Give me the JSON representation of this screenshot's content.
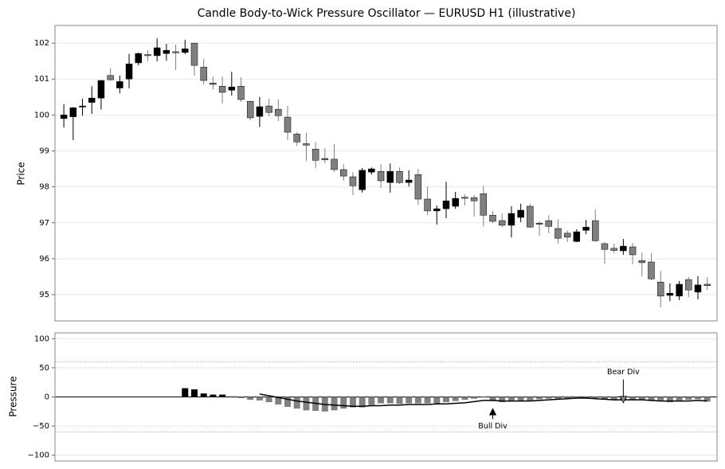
{
  "chart_data": [
    {
      "type": "candlestick",
      "title": "Candle Body-to-Wick Pressure Oscillator — EURUSD H1 (illustrative)",
      "y_label": "Price",
      "x": [
        0,
        1,
        2,
        3,
        4,
        5,
        6,
        7,
        8,
        9,
        10,
        11,
        12,
        13,
        14,
        15,
        16,
        17,
        18,
        19,
        20,
        21,
        22,
        23,
        24,
        25,
        26,
        27,
        28,
        29,
        30,
        31,
        32,
        33,
        34,
        35,
        36,
        37,
        38,
        39,
        40,
        41,
        42,
        43,
        44,
        45,
        46,
        47,
        48,
        49,
        50,
        51,
        52,
        53,
        54,
        55,
        56,
        57,
        58,
        59,
        60,
        61,
        62,
        63,
        64,
        65,
        66,
        67,
        68,
        69
      ],
      "open": [
        99.9,
        99.95,
        100.22,
        100.35,
        100.47,
        101.1,
        100.75,
        101.0,
        101.45,
        101.68,
        101.65,
        101.71,
        101.76,
        101.74,
        102.0,
        101.33,
        100.89,
        100.8,
        100.69,
        100.8,
        100.38,
        99.96,
        100.25,
        100.16,
        99.94,
        99.47,
        99.2,
        99.05,
        98.79,
        98.77,
        98.48,
        98.28,
        97.92,
        98.41,
        98.43,
        98.12,
        98.43,
        98.12,
        98.34,
        97.66,
        97.33,
        97.39,
        97.46,
        97.71,
        97.7,
        97.81,
        97.21,
        97.06,
        96.93,
        97.15,
        97.46,
        96.99,
        97.06,
        96.84,
        96.71,
        96.48,
        96.79,
        97.06,
        96.42,
        96.29,
        96.22,
        96.33,
        95.95,
        95.91,
        95.35,
        94.98,
        94.96,
        95.42,
        95.07,
        95.29
      ],
      "high": [
        100.3,
        100.22,
        100.45,
        100.8,
        100.97,
        101.3,
        101.1,
        101.7,
        101.74,
        101.8,
        102.13,
        101.98,
        101.96,
        102.09,
        102.0,
        101.56,
        101.07,
        101.07,
        101.2,
        101.05,
        100.4,
        100.5,
        100.45,
        100.43,
        100.25,
        99.52,
        99.5,
        99.25,
        99.08,
        99.19,
        98.63,
        98.41,
        98.52,
        98.54,
        98.63,
        98.65,
        98.54,
        98.46,
        98.5,
        98.01,
        97.48,
        98.14,
        97.86,
        97.79,
        97.77,
        98.03,
        97.32,
        97.26,
        97.46,
        97.53,
        97.53,
        97.04,
        97.21,
        97.1,
        96.79,
        96.82,
        97.08,
        97.37,
        96.46,
        96.42,
        96.55,
        96.44,
        96.17,
        96.15,
        95.66,
        95.31,
        95.38,
        95.49,
        95.51,
        95.49
      ],
      "low": [
        99.65,
        99.3,
        99.98,
        100.03,
        100.15,
        100.95,
        100.6,
        100.74,
        101.38,
        101.49,
        101.49,
        101.51,
        101.25,
        101.69,
        101.09,
        100.85,
        100.71,
        100.32,
        100.54,
        100.36,
        99.85,
        99.67,
        99.96,
        99.83,
        99.3,
        99.14,
        98.72,
        98.52,
        98.66,
        98.41,
        98.17,
        97.77,
        97.84,
        98.34,
        97.97,
        97.84,
        98.08,
        98.01,
        97.5,
        97.21,
        96.95,
        97.13,
        97.39,
        97.48,
        97.17,
        96.9,
        97.0,
        96.88,
        96.59,
        97.02,
        96.86,
        96.64,
        96.71,
        96.42,
        96.46,
        96.46,
        96.68,
        96.48,
        95.86,
        96.15,
        96.11,
        95.84,
        95.51,
        95.4,
        94.65,
        94.82,
        94.85,
        94.93,
        94.87,
        95.13
      ],
      "close": [
        100.0,
        100.2,
        100.25,
        100.47,
        100.96,
        100.98,
        100.93,
        101.42,
        101.71,
        101.65,
        101.87,
        101.8,
        101.73,
        101.84,
        101.38,
        100.96,
        100.85,
        100.63,
        100.78,
        100.43,
        99.92,
        100.23,
        100.07,
        99.98,
        99.52,
        99.25,
        99.16,
        98.74,
        98.75,
        98.48,
        98.3,
        98.03,
        98.46,
        98.5,
        98.17,
        98.43,
        98.12,
        98.19,
        97.66,
        97.33,
        97.39,
        97.61,
        97.68,
        97.68,
        97.61,
        97.21,
        97.04,
        96.93,
        97.26,
        97.35,
        96.88,
        96.96,
        96.9,
        96.57,
        96.6,
        96.75,
        96.88,
        96.5,
        96.26,
        96.23,
        96.35,
        96.11,
        95.89,
        95.44,
        94.96,
        95.04,
        95.29,
        95.13,
        95.27,
        95.25
      ],
      "up_color": "#000000",
      "down_color": "#808080",
      "xlim": [
        -0.95,
        70.05
      ],
      "ylim": [
        94.27,
        102.49
      ],
      "yticks": [
        95,
        96,
        97,
        98,
        99,
        100,
        101,
        102
      ],
      "grid": true
    },
    {
      "type": "oscillator",
      "y_label": "Pressure",
      "x": [
        0,
        1,
        2,
        3,
        4,
        5,
        6,
        7,
        8,
        9,
        10,
        11,
        12,
        13,
        14,
        15,
        16,
        17,
        18,
        19,
        20,
        21,
        22,
        23,
        24,
        25,
        26,
        27,
        28,
        29,
        30,
        31,
        32,
        33,
        34,
        35,
        36,
        37,
        38,
        39,
        40,
        41,
        42,
        43,
        44,
        45,
        46,
        47,
        48,
        49,
        50,
        51,
        52,
        53,
        54,
        55,
        56,
        57,
        58,
        59,
        60,
        61,
        62,
        63,
        64,
        65,
        66,
        67,
        68,
        69
      ],
      "series": [
        {
          "type": "bar",
          "color": "#808080",
          "positive_color": "#000000",
          "values": [
            null,
            null,
            null,
            null,
            null,
            null,
            null,
            null,
            null,
            null,
            null,
            null,
            null,
            15,
            13,
            6,
            4,
            4,
            0,
            -2,
            -5,
            -6,
            -9,
            -13,
            -17,
            -20,
            -23,
            -24,
            -25,
            -23,
            -20,
            -18,
            -18,
            -14,
            -11,
            -11,
            -12,
            -11,
            -11,
            -11,
            -11,
            -9,
            -7,
            -5,
            -3,
            -1,
            -7,
            -9,
            -8,
            -7,
            -6,
            -4,
            -3,
            -3,
            -2,
            -1,
            -2,
            -2,
            -4,
            -5,
            -6,
            -4,
            -5,
            -7,
            -6,
            -9,
            -6,
            -5,
            -4,
            -8
          ]
        },
        {
          "type": "line",
          "color": "#000000",
          "values": [
            null,
            null,
            null,
            null,
            null,
            null,
            null,
            null,
            null,
            null,
            null,
            null,
            null,
            null,
            null,
            null,
            null,
            null,
            null,
            null,
            null,
            5,
            2,
            -1,
            -4,
            -7,
            -9,
            -11,
            -13,
            -14,
            -15,
            -16,
            -16,
            -15,
            -15,
            -14,
            -14,
            -13,
            -13,
            -13,
            -12,
            -12,
            -11,
            -10,
            -8,
            -6,
            -6,
            -7,
            -7,
            -7,
            -7,
            -6,
            -5,
            -4,
            -3,
            -2,
            -2,
            -3,
            -4,
            -5,
            -5,
            -5,
            -5,
            -6,
            -7,
            -7,
            -7,
            -7,
            -6,
            -7
          ]
        }
      ],
      "reference_lines": [
        60,
        -60
      ],
      "annotations": [
        {
          "text": "Bull Div",
          "xy": [
            46,
            -20
          ],
          "xytext": [
            46,
            -38
          ]
        },
        {
          "text": "Bear Div",
          "xy": [
            60,
            -10
          ],
          "xytext": [
            60,
            30
          ]
        }
      ],
      "xlim": [
        -0.95,
        70.05
      ],
      "ylim": [
        -110,
        110
      ],
      "yticks": [
        {
          "value": -100,
          "label": "−100"
        },
        {
          "value": -50,
          "label": "−50"
        },
        0,
        50,
        100
      ],
      "grid": true
    }
  ]
}
